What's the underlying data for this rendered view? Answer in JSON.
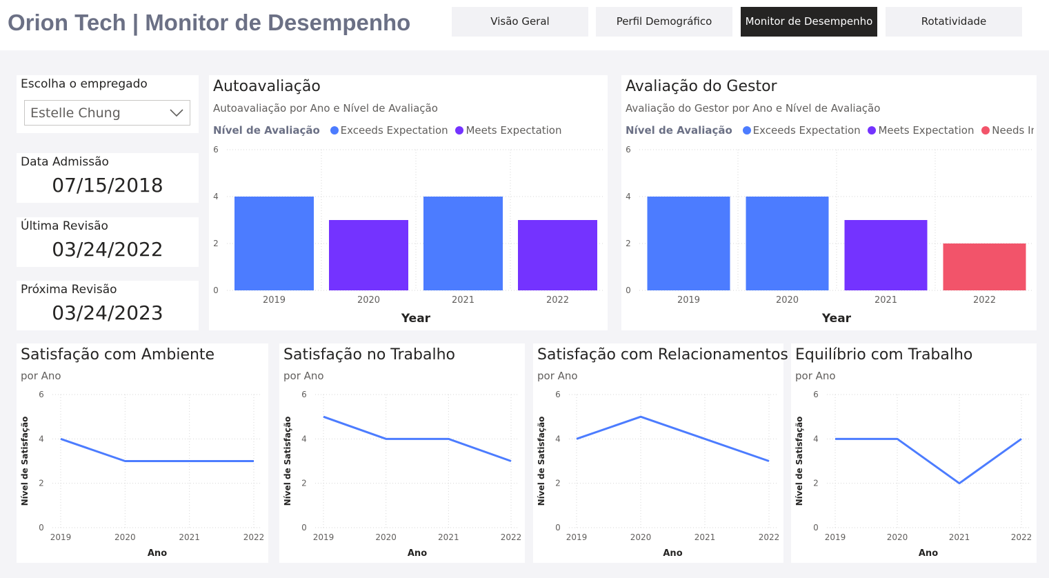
{
  "header": {
    "title": "Orion Tech | Monitor de Desempenho",
    "nav": [
      {
        "label": "Visão Geral"
      },
      {
        "label": "Perfil Demográfico"
      },
      {
        "label": "Monitor de Desempenho"
      },
      {
        "label": "Rotatividade"
      }
    ],
    "active_nav": "Monitor de Desempenho"
  },
  "filters": {
    "employee_label": "Escolha o empregado",
    "employee_value": "Estelle Chung"
  },
  "cards": {
    "admission": {
      "label": "Data Admissão",
      "value": "07/15/2018"
    },
    "last_review": {
      "label": "Última Revisão",
      "value": "03/24/2022"
    },
    "next_review": {
      "label": "Próxima Revisão",
      "value": "03/24/2023"
    }
  },
  "colors": {
    "exceeds": "#4c7cff",
    "meets": "#7433ff",
    "needs": "#f2546a",
    "line": "#4c7cff"
  },
  "chart_data": [
    {
      "id": "self",
      "type": "bar",
      "title": "Autoavaliação",
      "subtitle": "Autoavaliação por Ano e Nível de Avaliação",
      "legend_title": "Nível de Avaliação",
      "legend": [
        {
          "name": "Exceeds Expectation",
          "color": "#4c7cff"
        },
        {
          "name": "Meets Expectation",
          "color": "#7433ff"
        }
      ],
      "categories": [
        "2019",
        "2020",
        "2021",
        "2022"
      ],
      "values": [
        4,
        3,
        4,
        3
      ],
      "levels": [
        "Exceeds Expectation",
        "Meets Expectation",
        "Exceeds Expectation",
        "Meets Expectation"
      ],
      "xlabel": "Year",
      "ylabel": "",
      "ylim": [
        0,
        6
      ],
      "yticks": [
        "0",
        "2",
        "4",
        "6"
      ]
    },
    {
      "id": "manager",
      "type": "bar",
      "title": "Avaliação do Gestor",
      "subtitle": "Avaliação do Gestor por Ano e Nível de Avaliação",
      "legend_title": "Nível de Avaliação",
      "legend": [
        {
          "name": "Exceeds Expectation",
          "color": "#4c7cff"
        },
        {
          "name": "Meets Expectation",
          "color": "#7433ff"
        },
        {
          "name": "Needs Improv...",
          "color": "#f2546a"
        }
      ],
      "categories": [
        "2019",
        "2020",
        "2021",
        "2022"
      ],
      "values": [
        4,
        4,
        3,
        2
      ],
      "levels": [
        "Exceeds Expectation",
        "Exceeds Expectation",
        "Meets Expectation",
        "Needs Improvement"
      ],
      "xlabel": "Year",
      "ylabel": "",
      "ylim": [
        0,
        6
      ],
      "yticks": [
        "0",
        "2",
        "4",
        "6"
      ]
    },
    {
      "id": "env",
      "type": "line",
      "title": "Satisfação com Ambiente",
      "subtitle": "por Ano",
      "categories": [
        "2019",
        "2020",
        "2021",
        "2022"
      ],
      "values": [
        4,
        3,
        3,
        3
      ],
      "xlabel": "Ano",
      "ylabel": "Nível de Satisfação",
      "ylim": [
        0,
        6
      ],
      "yticks": [
        "0",
        "2",
        "4",
        "6"
      ]
    },
    {
      "id": "job",
      "type": "line",
      "title": "Satisfação no Trabalho",
      "subtitle": "por Ano",
      "categories": [
        "2019",
        "2020",
        "2021",
        "2022"
      ],
      "values": [
        5,
        4,
        4,
        3
      ],
      "xlabel": "Ano",
      "ylabel": "Nível de Satisfação",
      "ylim": [
        0,
        6
      ],
      "yticks": [
        "0",
        "2",
        "4",
        "6"
      ]
    },
    {
      "id": "rel",
      "type": "line",
      "title": "Satisfação com Relacionamentos",
      "subtitle": "por Ano",
      "categories": [
        "2019",
        "2020",
        "2021",
        "2022"
      ],
      "values": [
        4,
        5,
        4,
        3
      ],
      "xlabel": "Ano",
      "ylabel": "Nível de Satisfação",
      "ylim": [
        0,
        6
      ],
      "yticks": [
        "0",
        "2",
        "4",
        "6"
      ]
    },
    {
      "id": "wlb",
      "type": "line",
      "title": "Equilíbrio com Trabalho",
      "subtitle": "por Ano",
      "categories": [
        "2019",
        "2020",
        "2021",
        "2022"
      ],
      "values": [
        4,
        4,
        2,
        4
      ],
      "xlabel": "Ano",
      "ylabel": "Nível de Satisfação",
      "ylim": [
        0,
        6
      ],
      "yticks": [
        "0",
        "2",
        "4",
        "6"
      ]
    }
  ]
}
